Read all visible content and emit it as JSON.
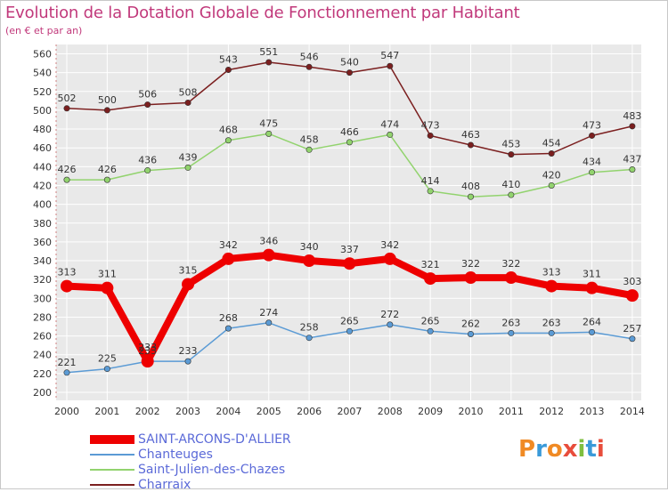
{
  "title": "Evolution de la Dotation Globale de Fonctionnement par Habitant",
  "subtitle": "(en € et par an)",
  "brand": {
    "text": "Proxiti",
    "letter_colors": [
      "#f08a24",
      "#3a9ad9",
      "#f08a24",
      "#e84d3c",
      "#7fbf3f",
      "#3a9ad9",
      "#e84d3c"
    ]
  },
  "chart_data": {
    "type": "line",
    "x": [
      "2000",
      "2001",
      "2002",
      "2003",
      "2004",
      "2005",
      "2006",
      "2007",
      "2008",
      "2009",
      "2010",
      "2011",
      "2012",
      "2013",
      "2014"
    ],
    "ylim": [
      200,
      560
    ],
    "yticks": [
      200,
      220,
      240,
      260,
      280,
      300,
      320,
      340,
      360,
      380,
      400,
      420,
      440,
      460,
      480,
      500,
      520,
      540,
      560
    ],
    "grid": true,
    "legend_position": "bottom-left",
    "series": [
      {
        "name": "SAINT-ARCONS-D'ALLIER",
        "color": "#ee0000",
        "values": [
          313,
          311,
          233,
          315,
          342,
          346,
          340,
          337,
          342,
          321,
          322,
          322,
          313,
          311,
          303
        ]
      },
      {
        "name": "Chanteuges",
        "color": "#5b9bd5",
        "values": [
          221,
          225,
          233,
          233,
          268,
          274,
          258,
          265,
          272,
          265,
          262,
          263,
          263,
          264,
          257
        ]
      },
      {
        "name": "Saint-Julien-des-Chazes",
        "color": "#92d36e",
        "values": [
          426,
          426,
          436,
          439,
          468,
          475,
          458,
          466,
          474,
          414,
          408,
          410,
          420,
          434,
          437
        ]
      },
      {
        "name": "Charraix",
        "color": "#7b1f1f",
        "values": [
          502,
          500,
          506,
          508,
          543,
          551,
          546,
          540,
          547,
          473,
          463,
          453,
          454,
          473,
          483
        ]
      }
    ]
  }
}
